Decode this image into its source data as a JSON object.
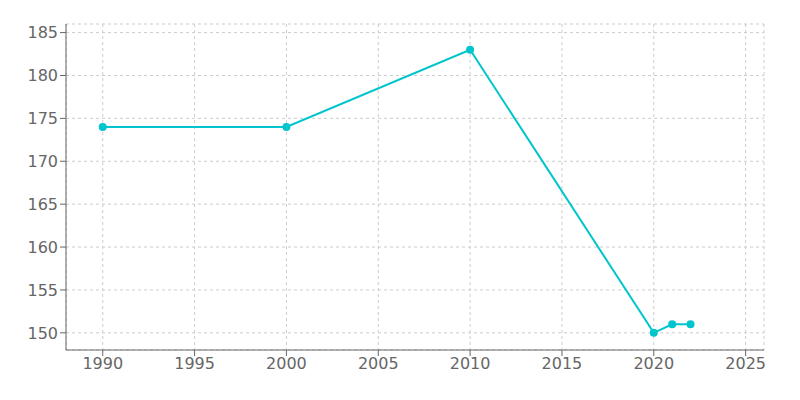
{
  "chart_data": {
    "type": "line",
    "x": [
      1990,
      2000,
      2010,
      2020,
      2021,
      2022
    ],
    "values": [
      174,
      174,
      183,
      150,
      151,
      151
    ],
    "color": "#00C5CD",
    "marker": "circle",
    "xlim": [
      1988,
      2026
    ],
    "xticks": [
      1990,
      1995,
      2000,
      2005,
      2010,
      2015,
      2020,
      2025
    ],
    "ylim": [
      148,
      186
    ],
    "yticks": [
      150,
      155,
      160,
      165,
      170,
      175,
      180,
      185
    ],
    "grid": true
  }
}
